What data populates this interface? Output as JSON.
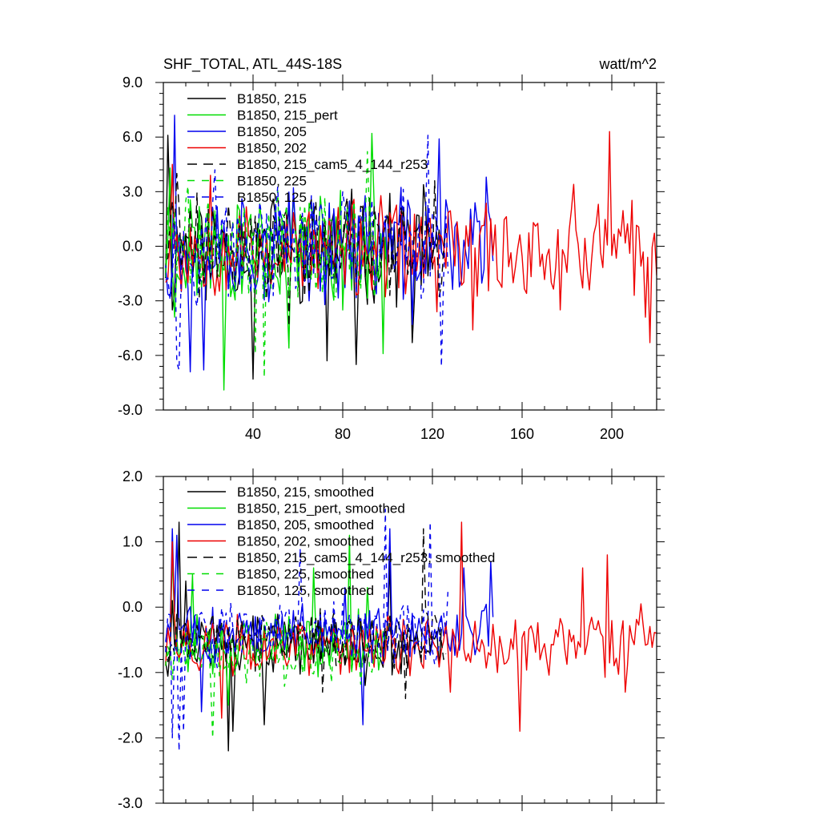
{
  "figure": {
    "title_left": "SHF_TOTAL, ATL_44S-18S",
    "title_right": "watt/m^2"
  },
  "chart_data": [
    {
      "type": "line",
      "title": "SHF_TOTAL, ATL_44S-18S",
      "units": "watt/m^2",
      "xlim": [
        0,
        220
      ],
      "ylim": [
        -9,
        9
      ],
      "xticks": [
        40,
        80,
        120,
        160,
        200
      ],
      "xtick_labels": [
        "40",
        "80",
        "120",
        "160",
        "200"
      ],
      "yticks": [
        -9,
        -6,
        -3,
        0,
        3,
        6,
        9
      ],
      "ytick_labels": [
        "-9.0",
        "-6.0",
        "-3.0",
        "0.0",
        "3.0",
        "6.0",
        "9.0"
      ],
      "legend_position": "top-left",
      "series": [
        {
          "name": "B1850, 215",
          "color": "#000000",
          "dash": "solid",
          "length": 124,
          "center": 0.0,
          "amp": 2.6,
          "seed": 11,
          "peaks": [
            [
              1,
              6.1
            ],
            [
              3,
              -3.5
            ],
            [
              39,
              -7.3
            ],
            [
              72,
              -6.3
            ],
            [
              85,
              -6.5
            ],
            [
              110,
              -5.3
            ]
          ]
        },
        {
          "name": "B1850, 215_pert",
          "color": "#00dd00",
          "dash": "solid",
          "length": 100,
          "center": 0.0,
          "amp": 2.8,
          "seed": 23,
          "peaks": [
            [
              2,
              4.3
            ],
            [
              4,
              -3.9
            ],
            [
              26,
              -7.9
            ],
            [
              55,
              -5.6
            ],
            [
              92,
              6.2
            ],
            [
              97,
              -5.9
            ]
          ]
        },
        {
          "name": "B1850, 205",
          "color": "#0000ee",
          "dash": "solid",
          "length": 147,
          "center": 0.0,
          "amp": 2.6,
          "seed": 37,
          "peaks": [
            [
              4,
              7.2
            ],
            [
              7,
              -2.5
            ],
            [
              11,
              -6.9
            ],
            [
              17,
              -6.8
            ],
            [
              122,
              5.9
            ],
            [
              143,
              3.8
            ],
            [
              110,
              -4.3
            ]
          ]
        },
        {
          "name": "B1850, 202",
          "color": "#ee0000",
          "dash": "solid",
          "length": 220,
          "center": -0.2,
          "amp": 2.3,
          "seed": 53,
          "peaks": [
            [
              3,
              4.5
            ],
            [
              20,
              3.9
            ],
            [
              121,
              -3.6
            ],
            [
              137,
              -4.6
            ],
            [
              176,
              -3.5
            ],
            [
              182,
              3.4
            ],
            [
              198,
              6.3
            ],
            [
              214,
              -3.9
            ],
            [
              216,
              -5.3
            ],
            [
              219,
              -1.6
            ]
          ]
        },
        {
          "name": "B1850, 215_cam5_4_144_r253",
          "color": "#000000",
          "dash": "10,6",
          "length": 126,
          "center": 0.0,
          "amp": 2.4,
          "seed": 71,
          "peaks": [
            [
              5,
              4.0
            ],
            [
              55,
              -4.4
            ],
            [
              120,
              3.6
            ],
            [
              125,
              1.0
            ]
          ]
        },
        {
          "name": "B1850, 225",
          "color": "#00dd00",
          "dash": "6,6",
          "length": 96,
          "center": 0.0,
          "amp": 2.6,
          "seed": 89,
          "peaks": [
            [
              10,
              3.3
            ],
            [
              40,
              -5.9
            ],
            [
              44,
              -7.2
            ],
            [
              90,
              5.2
            ]
          ]
        },
        {
          "name": "B1850, 125",
          "color": "#0000ee",
          "dash": "6,6",
          "length": 127,
          "center": 0.0,
          "amp": 2.5,
          "seed": 97,
          "peaks": [
            [
              5,
              -6.4
            ],
            [
              6,
              -6.8
            ],
            [
              22,
              4.2
            ],
            [
              117,
              6.1
            ],
            [
              123,
              -6.6
            ],
            [
              126,
              -1.5
            ]
          ]
        }
      ]
    },
    {
      "type": "line",
      "title": "",
      "xlim": [
        0,
        220
      ],
      "ylim": [
        -3,
        2
      ],
      "xticks": [
        40,
        80,
        120,
        160,
        200
      ],
      "xtick_labels": [
        "",
        "",
        "",
        "",
        ""
      ],
      "yticks": [
        -3,
        -2,
        -1,
        0,
        1,
        2
      ],
      "ytick_labels": [
        "-3.0",
        "-2.0",
        "-1.0",
        "0.0",
        "1.0",
        "2.0"
      ],
      "legend_position": "top-left",
      "series": [
        {
          "name": "B1850, 215, smoothed",
          "color": "#000000",
          "dash": "solid",
          "length": 124,
          "center": -0.6,
          "amp": 0.38,
          "seed": 12,
          "peaks": [
            [
              3,
              0.1
            ],
            [
              6,
              1.3
            ],
            [
              9,
              0.4
            ],
            [
              28,
              -2.2
            ],
            [
              30,
              -1.9
            ],
            [
              44,
              -1.8
            ],
            [
              89,
              -1.2
            ],
            [
              100,
              0.7
            ],
            [
              115,
              -0.6
            ]
          ]
        },
        {
          "name": "B1850, 215_pert, smoothed",
          "color": "#00dd00",
          "dash": "solid",
          "length": 100,
          "center": -0.55,
          "amp": 0.4,
          "seed": 24,
          "peaks": [
            [
              3,
              0.8
            ],
            [
              12,
              0.5
            ],
            [
              28,
              -1.5
            ],
            [
              66,
              0.6
            ],
            [
              82,
              1.1
            ],
            [
              90,
              0.3
            ]
          ]
        },
        {
          "name": "B1850, 205, smoothed",
          "color": "#0000ee",
          "dash": "solid",
          "length": 147,
          "center": -0.4,
          "amp": 0.38,
          "seed": 38,
          "peaks": [
            [
              3,
              1.2
            ],
            [
              5,
              1.1
            ],
            [
              16,
              -1.6
            ],
            [
              80,
              0.3
            ],
            [
              88,
              -1.8
            ],
            [
              100,
              1.2
            ],
            [
              133,
              0.6
            ],
            [
              145,
              0.7
            ]
          ]
        },
        {
          "name": "B1850, 202, smoothed",
          "color": "#ee0000",
          "dash": "solid",
          "length": 220,
          "center": -0.6,
          "amp": 0.4,
          "seed": 54,
          "peaks": [
            [
              3,
              1.0
            ],
            [
              25,
              -1.7
            ],
            [
              127,
              -1.3
            ],
            [
              132,
              1.3
            ],
            [
              148,
              -1.0
            ],
            [
              158,
              -1.9
            ],
            [
              186,
              0.6
            ],
            [
              197,
              0.8
            ],
            [
              205,
              -1.3
            ],
            [
              212,
              0.05
            ],
            [
              219,
              -0.4
            ]
          ]
        },
        {
          "name": "B1850, 215_cam5_4_144_r253, smoothed",
          "color": "#000000",
          "dash": "10,6",
          "length": 126,
          "center": -0.5,
          "amp": 0.38,
          "seed": 72,
          "peaks": [
            [
              5,
              -0.1
            ],
            [
              70,
              -1.3
            ],
            [
              107,
              -1.4
            ],
            [
              115,
              1.2
            ],
            [
              124,
              -0.8
            ]
          ]
        },
        {
          "name": "B1850, 225, smoothed",
          "color": "#00dd00",
          "dash": "6,6",
          "length": 96,
          "center": -0.7,
          "amp": 0.4,
          "seed": 90,
          "peaks": [
            [
              4,
              -0.6
            ],
            [
              21,
              -2.0
            ],
            [
              95,
              -0.5
            ]
          ]
        },
        {
          "name": "B1850, 125, smoothed",
          "color": "#0000ee",
          "dash": "6,6",
          "length": 127,
          "center": -0.4,
          "amp": 0.42,
          "seed": 98,
          "peaks": [
            [
              3,
              -2.0
            ],
            [
              6,
              -2.2
            ],
            [
              8,
              -1.9
            ],
            [
              60,
              0.9
            ],
            [
              98,
              1.5
            ],
            [
              118,
              1.3
            ],
            [
              126,
              0.3
            ]
          ]
        }
      ]
    }
  ]
}
